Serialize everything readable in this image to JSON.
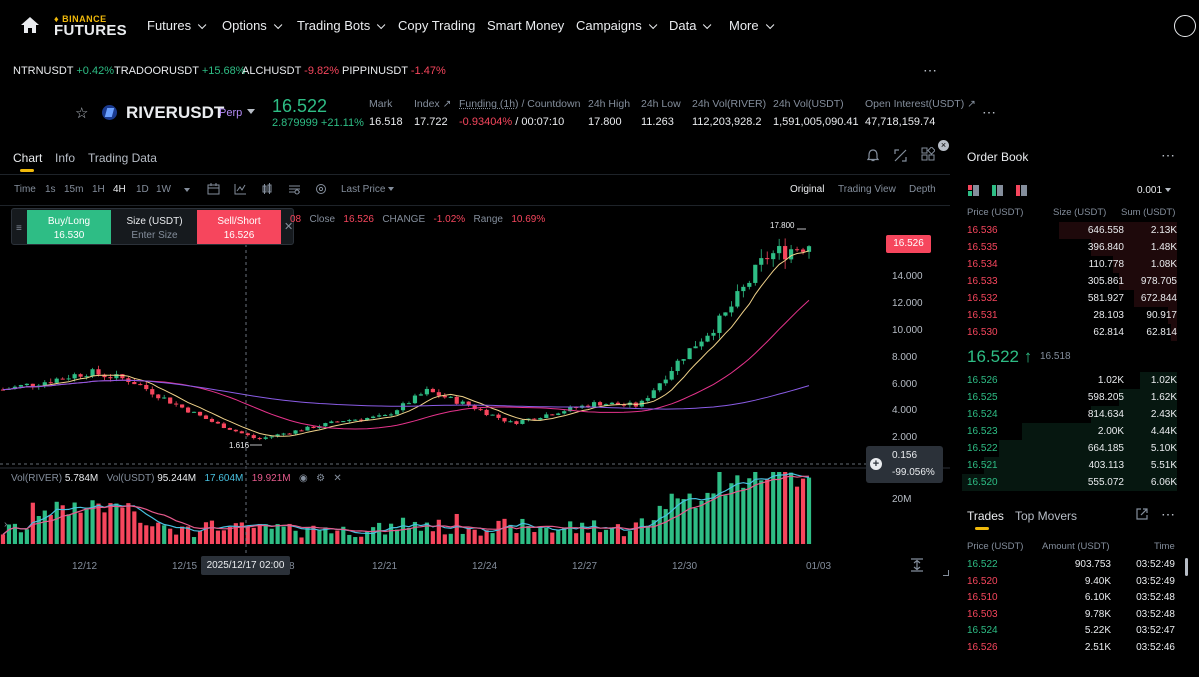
{
  "nav": {
    "logo_top": "BINANCE",
    "logo_bottom": "FUTURES",
    "items": [
      {
        "label": "Futures",
        "dropdown": true
      },
      {
        "label": "Options",
        "dropdown": true
      },
      {
        "label": "Trading Bots",
        "dropdown": true
      },
      {
        "label": "Copy Trading",
        "dropdown": false
      },
      {
        "label": "Smart Money",
        "dropdown": false
      },
      {
        "label": "Campaigns",
        "dropdown": true
      },
      {
        "label": "Data",
        "dropdown": true
      },
      {
        "label": "More",
        "dropdown": true
      }
    ]
  },
  "ticker": [
    {
      "symbol": "NTRNUSDT",
      "change": "+0.42%",
      "dir": "up"
    },
    {
      "symbol": "TRADOORUSDT",
      "change": "+15.68%",
      "dir": "up"
    },
    {
      "symbol": "ALCHUSDT",
      "change": "-9.82%",
      "dir": "down"
    },
    {
      "symbol": "PIPPINUSDT",
      "change": "-1.47%",
      "dir": "down"
    }
  ],
  "header": {
    "symbol": "RIVERUSDT",
    "contract": "Perp",
    "last_price": "16.522",
    "change": "2.879999 +21.11%",
    "stats": {
      "mark_label": "Mark",
      "mark": "16.518",
      "index_label": "Index ↗",
      "index": "17.722",
      "funding_label": "Funding (1h)",
      "funding_suffix": " / Countdown",
      "funding_rate": "-0.93404%",
      "countdown": " / 00:07:10",
      "high_label": "24h High",
      "high": "17.800",
      "low_label": "24h Low",
      "low": "11.263",
      "vol_river_label": "24h Vol(RIVER)",
      "vol_river": "112,203,928.2",
      "vol_usdt_label": "24h Vol(USDT)",
      "vol_usdt": "1,591,005,090.41",
      "oi_label": "Open Interest(USDT) ↗",
      "oi": "47,718,159.74"
    }
  },
  "chart_tabs": [
    "Chart",
    "Info",
    "Trading Data"
  ],
  "intervals": [
    "Time",
    "1s",
    "15m",
    "1H",
    "4H",
    "1D",
    "1W"
  ],
  "active_interval": "4H",
  "price_source": "Last Price",
  "views": [
    "Original",
    "Trading View",
    "Depth"
  ],
  "trade_widget": {
    "buy_label": "Buy/Long",
    "buy_price": "16.530",
    "size_label": "Size (USDT)",
    "size_placeholder": "Enter Size",
    "sell_label": "Sell/Short",
    "sell_price": "16.526"
  },
  "ohlc": {
    "prefix": "08",
    "close_label": "Close",
    "close": "16.526",
    "change_label": "CHANGE",
    "change": "-1.02%",
    "range_label": "Range",
    "range": "10.69%"
  },
  "volume_legend": {
    "label1": "Vol(RIVER)",
    "val1": "5.784M",
    "label2": "Vol(USDT)",
    "val2": "95.244M",
    "val3": "17.604M",
    "val4": "19.921M"
  },
  "price_axis": {
    "current_tag": "16.526",
    "crosshair_price": "0.156",
    "crosshair_pct": "-99.056%",
    "high_marker": "17.800",
    "low_marker": "1.616",
    "vol_tick": "20M"
  },
  "crosshair_date": "2025/12/17 02:00",
  "chart_data": {
    "type": "candlestick",
    "symbol": "RIVERUSDT",
    "interval": "4H",
    "x_ticks": [
      "12/12",
      "12/15",
      "12/18",
      "12/21",
      "12/24",
      "12/27",
      "12/30",
      "01/03"
    ],
    "y_ticks": [
      2.0,
      4.0,
      6.0,
      8.0,
      10.0,
      12.0,
      14.0
    ],
    "ylim": [
      0,
      18.5
    ],
    "high": 17.8,
    "low": 1.616,
    "close": 16.526,
    "approx_close_path": [
      {
        "x": "12/10",
        "y": 5.6
      },
      {
        "x": "12/12",
        "y": 6.2
      },
      {
        "x": "12/13",
        "y": 6.9
      },
      {
        "x": "12/14",
        "y": 6.3
      },
      {
        "x": "12/15",
        "y": 4.6
      },
      {
        "x": "12/16",
        "y": 3.1
      },
      {
        "x": "12/17",
        "y": 1.9
      },
      {
        "x": "12/18",
        "y": 2.6
      },
      {
        "x": "12/19",
        "y": 3.3
      },
      {
        "x": "12/21",
        "y": 3.6
      },
      {
        "x": "12/23",
        "y": 5.5
      },
      {
        "x": "12/24",
        "y": 4.4
      },
      {
        "x": "12/25",
        "y": 3.1
      },
      {
        "x": "12/27",
        "y": 3.9
      },
      {
        "x": "12/29",
        "y": 4.6
      },
      {
        "x": "12/30",
        "y": 4.4
      },
      {
        "x": "12/31",
        "y": 8.0
      },
      {
        "x": "01/01",
        "y": 11.0
      },
      {
        "x": "01/02",
        "y": 15.5
      },
      {
        "x": "01/03",
        "y": 16.5
      }
    ]
  },
  "order_book": {
    "title": "Order Book",
    "tick": "0.001",
    "headers": [
      "Price (USDT)",
      "Size (USDT)",
      "Sum (USDT)"
    ],
    "asks": [
      {
        "price": "16.536",
        "size": "646.558",
        "sum": "2.13K",
        "depth": 0.55
      },
      {
        "price": "16.535",
        "size": "396.840",
        "sum": "1.48K",
        "depth": 0.4
      },
      {
        "price": "16.534",
        "size": "110.778",
        "sum": "1.08K",
        "depth": 0.3
      },
      {
        "price": "16.533",
        "size": "305.861",
        "sum": "978.705",
        "depth": 0.27
      },
      {
        "price": "16.532",
        "size": "581.927",
        "sum": "672.844",
        "depth": 0.2
      },
      {
        "price": "16.531",
        "size": "28.103",
        "sum": "90.917",
        "depth": 0.04
      },
      {
        "price": "16.530",
        "size": "62.814",
        "sum": "62.814",
        "depth": 0.03
      }
    ],
    "last_price": "16.522 ↑",
    "mark_price": "16.518",
    "bids": [
      {
        "price": "16.526",
        "size": "1.02K",
        "sum": "1.02K",
        "depth": 0.17
      },
      {
        "price": "16.525",
        "size": "598.205",
        "sum": "1.62K",
        "depth": 0.27
      },
      {
        "price": "16.524",
        "size": "814.634",
        "sum": "2.43K",
        "depth": 0.4
      },
      {
        "price": "16.523",
        "size": "2.00K",
        "sum": "4.44K",
        "depth": 0.72
      },
      {
        "price": "16.522",
        "size": "664.185",
        "sum": "5.10K",
        "depth": 0.83
      },
      {
        "price": "16.521",
        "size": "403.113",
        "sum": "5.51K",
        "depth": 0.9
      },
      {
        "price": "16.520",
        "size": "555.072",
        "sum": "6.06K",
        "depth": 1.0
      }
    ]
  },
  "trades": {
    "tabs": [
      "Trades",
      "Top Movers"
    ],
    "headers": [
      "Price (USDT)",
      "Amount (USDT)",
      "Time"
    ],
    "rows": [
      {
        "price": "16.522",
        "amount": "903.753",
        "time": "03:52:49",
        "side": "buy"
      },
      {
        "price": "16.520",
        "amount": "9.40K",
        "time": "03:52:49",
        "side": "sell"
      },
      {
        "price": "16.510",
        "amount": "6.10K",
        "time": "03:52:48",
        "side": "sell"
      },
      {
        "price": "16.503",
        "amount": "9.78K",
        "time": "03:52:48",
        "side": "sell"
      },
      {
        "price": "16.524",
        "amount": "5.22K",
        "time": "03:52:47",
        "side": "buy"
      },
      {
        "price": "16.526",
        "amount": "2.51K",
        "time": "03:52:46",
        "side": "sell"
      }
    ]
  },
  "colors": {
    "up": "#2ebd85",
    "down": "#f6465d",
    "accent": "#f0b90b",
    "muted": "#848e9c"
  }
}
